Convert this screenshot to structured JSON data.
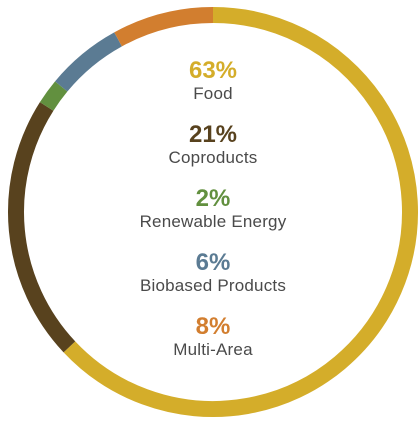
{
  "chart_data": {
    "type": "pie",
    "slices": [
      {
        "label": "Food",
        "percent_label": "63%",
        "value": 63,
        "color": "#d4ad2a"
      },
      {
        "label": "Coproducts",
        "percent_label": "21%",
        "value": 21,
        "color": "#58421e"
      },
      {
        "label": "Renewable Energy",
        "percent_label": "2%",
        "value": 2,
        "color": "#62903f"
      },
      {
        "label": "Biobased Products",
        "percent_label": "6%",
        "value": 6,
        "color": "#5b7b93"
      },
      {
        "label": "Multi-Area",
        "percent_label": "8%",
        "value": 8,
        "color": "#d27e2f"
      }
    ]
  }
}
